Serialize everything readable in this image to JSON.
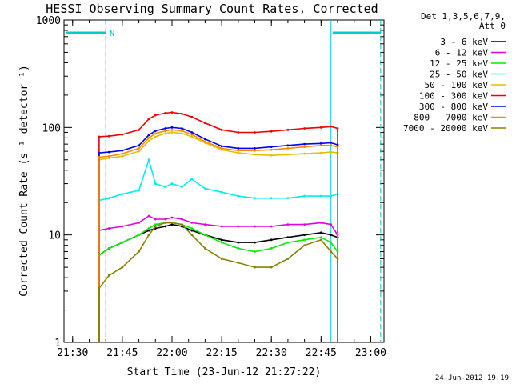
{
  "chart_data": {
    "type": "line",
    "title": "HESSI Observing Summary Count Rates, Corrected",
    "xlabel": "Start Time (23-Jun-12 21:27:22)",
    "ylabel": "Corrected Count Rate (s⁻¹ detector⁻¹)",
    "yscale": "log",
    "ylim": [
      1,
      1000
    ],
    "xlim_minutes": [
      21.5,
      23.1
    ],
    "x_ticks": [
      "21:30",
      "21:45",
      "22:00",
      "22:15",
      "22:30",
      "22:45",
      "23:00"
    ],
    "y_ticks": [
      "1",
      "10",
      "100",
      "1000"
    ],
    "legend_title_1": "Det 1,3,5,6,7,9,",
    "legend_title_2": "Att 0",
    "legend_position": "right",
    "timestamp": "24-Jun-2012 19:19",
    "night_marker": "N",
    "x_times": [
      "21:38",
      "21:41",
      "21:45",
      "21:50",
      "21:53",
      "21:55",
      "21:58",
      "22:00",
      "22:03",
      "22:06",
      "22:10",
      "22:15",
      "22:20",
      "22:25",
      "22:30",
      "22:35",
      "22:40",
      "22:45",
      "22:48",
      "22:50"
    ],
    "series": [
      {
        "name": "3 - 6 keV",
        "color": "#000000",
        "values": [
          6.5,
          7.5,
          8.5,
          10.0,
          11.0,
          11.5,
          12.0,
          12.5,
          12.0,
          11.0,
          10.0,
          9.0,
          8.5,
          8.5,
          9.0,
          9.5,
          10.0,
          10.5,
          10.0,
          9.5
        ]
      },
      {
        "name": "6 - 12 keV",
        "color": "#e000e0",
        "values": [
          11.0,
          11.5,
          12.0,
          13.0,
          15.0,
          14.0,
          14.0,
          14.5,
          14.0,
          13.0,
          12.5,
          12.0,
          12.0,
          12.0,
          12.0,
          12.5,
          12.5,
          13.0,
          12.5,
          10.0
        ]
      },
      {
        "name": "12 - 25 keV",
        "color": "#00ee00",
        "values": [
          6.5,
          7.5,
          8.5,
          10.0,
          11.5,
          12.5,
          13.0,
          13.0,
          12.5,
          11.5,
          10.0,
          8.5,
          7.5,
          7.0,
          7.5,
          8.5,
          9.0,
          9.5,
          8.5,
          7.0
        ]
      },
      {
        "name": "25 - 50 keV",
        "color": "#00eeee",
        "values": [
          21.0,
          22.0,
          24.0,
          26.0,
          50.0,
          30.0,
          28.0,
          30.0,
          28.0,
          33.0,
          27.0,
          25.0,
          23.0,
          22.0,
          22.0,
          22.0,
          23.0,
          23.0,
          23.0,
          24.0
        ]
      },
      {
        "name": "50 - 100 keV",
        "color": "#e0c000",
        "values": [
          50.0,
          52.0,
          54.0,
          60.0,
          75.0,
          82.0,
          88.0,
          90.0,
          88.0,
          82.0,
          72.0,
          62.0,
          58.0,
          56.0,
          55.0,
          56.0,
          57.0,
          58.0,
          59.0,
          58.0
        ]
      },
      {
        "name": "100 - 300 keV",
        "color": "#ee0000",
        "values": [
          82.0,
          83.0,
          86.0,
          95.0,
          120.0,
          130.0,
          136.0,
          138.0,
          134.0,
          125.0,
          110.0,
          95.0,
          90.0,
          90.0,
          92.0,
          95.0,
          98.0,
          100.0,
          102.0,
          98.0
        ]
      },
      {
        "name": "300 - 800 keV",
        "color": "#0000ee",
        "values": [
          58.0,
          59.0,
          61.0,
          68.0,
          85.0,
          93.0,
          98.0,
          100.0,
          98.0,
          90.0,
          78.0,
          67.0,
          64.0,
          64.0,
          66.0,
          68.0,
          70.0,
          71.0,
          72.0,
          69.0
        ]
      },
      {
        "name": "800 - 7000 keV",
        "color": "#ff8800",
        "values": [
          53.0,
          54.0,
          57.0,
          64.0,
          80.0,
          88.0,
          93.0,
          95.0,
          93.0,
          86.0,
          74.0,
          64.0,
          61.0,
          61.0,
          62.0,
          64.0,
          66.0,
          68.0,
          68.0,
          66.0
        ]
      },
      {
        "name": "7000 - 20000 keV",
        "color": "#8b8000",
        "values": [
          3.2,
          4.2,
          5.0,
          7.0,
          10.0,
          12.0,
          13.0,
          13.0,
          12.5,
          10.0,
          7.5,
          6.0,
          5.5,
          5.0,
          5.0,
          6.0,
          8.0,
          9.0,
          7.0,
          6.0
        ]
      }
    ]
  }
}
